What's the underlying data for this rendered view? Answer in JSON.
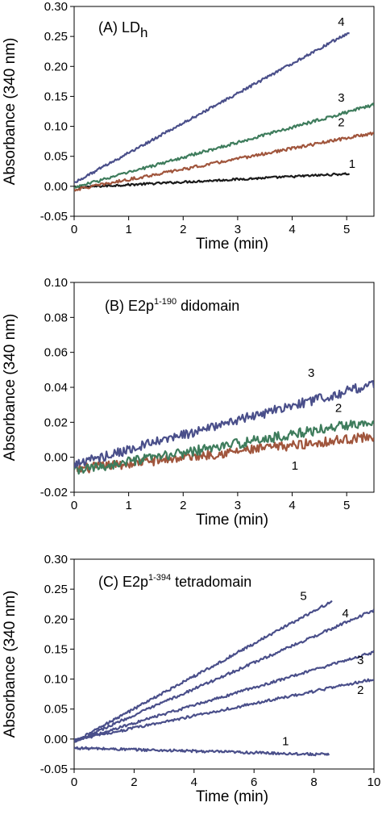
{
  "chart_data": [
    {
      "type": "line",
      "title": "(A) LD",
      "title_sub": "h",
      "xlabel": "Time (min)",
      "ylabel": "Absorbance (340 nm)",
      "xlim": [
        0,
        5.5
      ],
      "ylim": [
        -0.05,
        0.3
      ],
      "xticks": [
        0,
        1,
        2,
        3,
        4,
        5
      ],
      "yticks": [
        -0.05,
        0.0,
        0.05,
        0.1,
        0.15,
        0.2,
        0.25,
        0.3
      ],
      "ytick_decimals": 2,
      "series": [
        {
          "label": "1",
          "color": "#1a1a1a",
          "x": [
            0,
            5.05
          ],
          "y": [
            -0.002,
            0.021
          ],
          "noise": 0.0018
        },
        {
          "label": "2",
          "color": "#a0553c",
          "x": [
            0,
            5.5
          ],
          "y": [
            -0.006,
            0.089
          ],
          "noise": 0.0025
        },
        {
          "label": "3",
          "color": "#3e7c5c",
          "x": [
            0,
            5.5
          ],
          "y": [
            -0.002,
            0.136
          ],
          "noise": 0.0025
        },
        {
          "label": "4",
          "color": "#4a4f8a",
          "x": [
            0,
            5.05
          ],
          "y": [
            0.006,
            0.257
          ],
          "noise": 0.0022
        }
      ],
      "series_label_pos": [
        [
          5.1,
          0.031
        ],
        [
          4.9,
          0.1
        ],
        [
          4.9,
          0.141
        ],
        [
          4.9,
          0.268
        ]
      ]
    },
    {
      "type": "line",
      "title": "(B) E2p",
      "title_sup": "1-190",
      "title_rest": " didomain",
      "xlabel": "Time (min)",
      "ylabel": "Absorbance (340 nm)",
      "xlim": [
        0,
        5.5
      ],
      "ylim": [
        -0.02,
        0.1
      ],
      "xticks": [
        0,
        1,
        2,
        3,
        4,
        5
      ],
      "yticks": [
        -0.02,
        0.0,
        0.02,
        0.04,
        0.06,
        0.08,
        0.1
      ],
      "ytick_decimals": 2,
      "series": [
        {
          "label": "1",
          "color": "#a0553c",
          "x": [
            0,
            5.5
          ],
          "y": [
            -0.007,
            0.012
          ],
          "noise": 0.0028
        },
        {
          "label": "2",
          "color": "#3e7c5c",
          "x": [
            0,
            5.5
          ],
          "y": [
            -0.008,
            0.021
          ],
          "noise": 0.0028
        },
        {
          "label": "3",
          "color": "#4a4f8a",
          "x": [
            0,
            5.5
          ],
          "y": [
            -0.004,
            0.042
          ],
          "noise": 0.0028
        }
      ],
      "series_label_pos": [
        [
          4.05,
          -0.007
        ],
        [
          4.85,
          0.026
        ],
        [
          4.35,
          0.046
        ]
      ]
    },
    {
      "type": "line",
      "title": "(C) E2p",
      "title_sup": "1-394",
      "title_rest": " tetradomain",
      "xlabel": "Time (min)",
      "ylabel": "Absorbance (340 nm)",
      "xlim": [
        0,
        10
      ],
      "ylim": [
        -0.05,
        0.3
      ],
      "xticks": [
        0,
        2,
        4,
        6,
        8,
        10
      ],
      "yticks": [
        -0.05,
        0.0,
        0.05,
        0.1,
        0.15,
        0.2,
        0.25,
        0.3
      ],
      "ytick_decimals": 2,
      "series": [
        {
          "label": "1",
          "color": "#4a4f8a",
          "x": [
            0,
            8.5
          ],
          "y": [
            -0.015,
            -0.026
          ],
          "noise": 0.0022
        },
        {
          "label": "2",
          "color": "#4a4f8a",
          "x": [
            0,
            10
          ],
          "y": [
            -0.002,
            0.1
          ],
          "noise": 0.0022
        },
        {
          "label": "3",
          "color": "#4a4f8a",
          "x": [
            0,
            10
          ],
          "y": [
            -0.003,
            0.145
          ],
          "noise": 0.0022
        },
        {
          "label": "4",
          "color": "#4a4f8a",
          "x": [
            0,
            10
          ],
          "y": [
            -0.004,
            0.215
          ],
          "noise": 0.0022
        },
        {
          "label": "5",
          "color": "#4a4f8a",
          "x": [
            0,
            8.6
          ],
          "y": [
            -0.004,
            0.23
          ],
          "noise": 0.0022
        }
      ],
      "series_label_pos": [
        [
          7.05,
          -0.01
        ],
        [
          9.55,
          0.075
        ],
        [
          9.55,
          0.125
        ],
        [
          9.05,
          0.203
        ],
        [
          7.65,
          0.232
        ]
      ]
    }
  ]
}
